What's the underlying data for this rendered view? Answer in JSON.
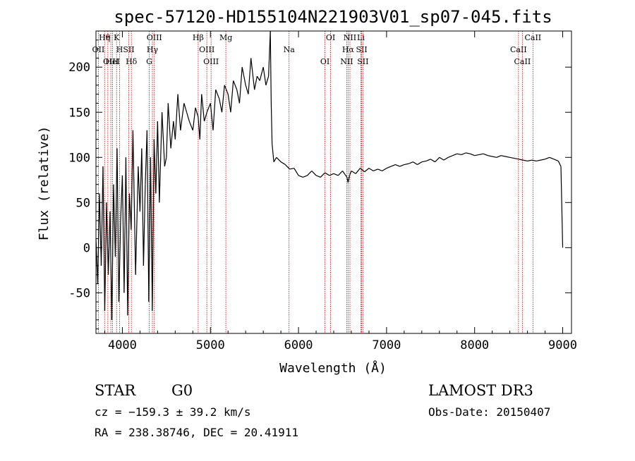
{
  "chart_data": {
    "type": "line",
    "title": "spec-57120-HD155104N221903V01_sp07-045.fits",
    "xlabel": "Wavelength (Å)",
    "ylabel": "Flux (relative)",
    "xlim": [
      3700,
      9100
    ],
    "ylim": [
      -95,
      240
    ],
    "xticks": [
      4000,
      5000,
      6000,
      7000,
      8000,
      9000
    ],
    "yticks": [
      -50,
      0,
      50,
      100,
      150,
      200
    ],
    "grid": false,
    "series": [
      {
        "x": [
          3700,
          3720,
          3740,
          3760,
          3780,
          3800,
          3820,
          3840,
          3860,
          3880,
          3900,
          3920,
          3940,
          3960,
          3980,
          4000,
          4020,
          4040,
          4060,
          4080,
          4100,
          4120,
          4150,
          4180,
          4200,
          4220,
          4240,
          4260,
          4280,
          4300,
          4320,
          4340,
          4360,
          4380,
          4400,
          4420,
          4450,
          4480,
          4500,
          4520,
          4550,
          4580,
          4600,
          4630,
          4660,
          4700,
          4730,
          4760,
          4800,
          4830,
          4860,
          4880,
          4900,
          4930,
          4960,
          5000,
          5030,
          5060,
          5100,
          5130,
          5160,
          5200,
          5230,
          5260,
          5300,
          5330,
          5360,
          5400,
          5430,
          5460,
          5500,
          5530,
          5560,
          5600,
          5630,
          5660,
          5680,
          5690,
          5700,
          5720,
          5750,
          5800,
          5850,
          5900,
          5950,
          6000,
          6050,
          6100,
          6150,
          6200,
          6250,
          6300,
          6350,
          6400,
          6450,
          6500,
          6550,
          6563,
          6580,
          6600,
          6650,
          6700,
          6750,
          6800,
          6850,
          6900,
          6950,
          7000,
          7050,
          7100,
          7150,
          7200,
          7250,
          7300,
          7350,
          7400,
          7450,
          7500,
          7550,
          7600,
          7650,
          7700,
          7750,
          7800,
          7850,
          7900,
          7950,
          8000,
          8050,
          8100,
          8150,
          8200,
          8250,
          8300,
          8350,
          8400,
          8450,
          8500,
          8550,
          8600,
          8650,
          8700,
          8750,
          8800,
          8850,
          8900,
          8950,
          8980,
          9000
        ],
        "y": [
          10,
          -40,
          60,
          -20,
          90,
          -70,
          50,
          -30,
          40,
          -80,
          70,
          -10,
          110,
          -60,
          30,
          80,
          -50,
          100,
          -75,
          60,
          20,
          130,
          -30,
          90,
          40,
          110,
          -20,
          70,
          130,
          -60,
          100,
          -70,
          120,
          60,
          140,
          50,
          150,
          90,
          100,
          160,
          110,
          140,
          120,
          170,
          130,
          160,
          150,
          140,
          130,
          155,
          145,
          120,
          170,
          140,
          150,
          160,
          130,
          175,
          165,
          150,
          180,
          170,
          150,
          185,
          175,
          160,
          200,
          180,
          170,
          210,
          175,
          190,
          185,
          200,
          180,
          190,
          250,
          160,
          115,
          95,
          100,
          95,
          92,
          87,
          88,
          80,
          78,
          80,
          85,
          80,
          78,
          83,
          80,
          82,
          80,
          85,
          78,
          72,
          80,
          85,
          82,
          88,
          84,
          88,
          85,
          87,
          85,
          88,
          90,
          92,
          90,
          92,
          93,
          95,
          92,
          95,
          96,
          98,
          95,
          100,
          97,
          100,
          102,
          104,
          103,
          105,
          104,
          102,
          103,
          104,
          102,
          101,
          100,
          102,
          101,
          100,
          99,
          98,
          97,
          96,
          97,
          96,
          97,
          98,
          100,
          98,
          96,
          90,
          0
        ]
      }
    ],
    "annotations": [
      {
        "label": "Hθ",
        "x": 3798
      },
      {
        "label": "OII",
        "x": 3727
      },
      {
        "label": "OIII",
        "x": 3869
      },
      {
        "label": "K",
        "x": 3934
      },
      {
        "label": "H",
        "x": 3969
      },
      {
        "label": "HeI",
        "x": 3889
      },
      {
        "label": "η",
        "x": 3835
      },
      {
        "label": "SII",
        "x": 4072
      },
      {
        "label": "Hδ",
        "x": 4102
      },
      {
        "label": "OIII",
        "x": 4363
      },
      {
        "label": "Hγ",
        "x": 4341
      },
      {
        "label": "G",
        "x": 4305
      },
      {
        "label": "Hβ",
        "x": 4861
      },
      {
        "label": "OIII",
        "x": 4959
      },
      {
        "label": "OIII",
        "x": 5007
      },
      {
        "label": "Mg",
        "x": 5175
      },
      {
        "label": "Na",
        "x": 5893
      },
      {
        "label": "OI",
        "x": 6300
      },
      {
        "label": "OI",
        "x": 6364
      },
      {
        "label": "Hα",
        "x": 6563
      },
      {
        "label": "NII",
        "x": 6548
      },
      {
        "label": "NII",
        "x": 6584
      },
      {
        "label": "SII",
        "x": 6717
      },
      {
        "label": "SII",
        "x": 6731
      },
      {
        "label": "Li",
        "x": 6708
      },
      {
        "label": "CaII",
        "x": 8498
      },
      {
        "label": "CaII",
        "x": 8542
      },
      {
        "label": "CaII",
        "x": 8662
      }
    ]
  },
  "info": {
    "class": "STAR",
    "subclass": "G0",
    "survey": "LAMOST DR3",
    "redshift": "cz = −159.3 ± 39.2 km/s",
    "obsdate": "Obs-Date: 20150407",
    "coords": "RA = 238.38746, DEC =  20.41911"
  },
  "colors": {
    "axes": "#000000",
    "spectrum": "#000000",
    "line_markers": "#cc0000"
  }
}
